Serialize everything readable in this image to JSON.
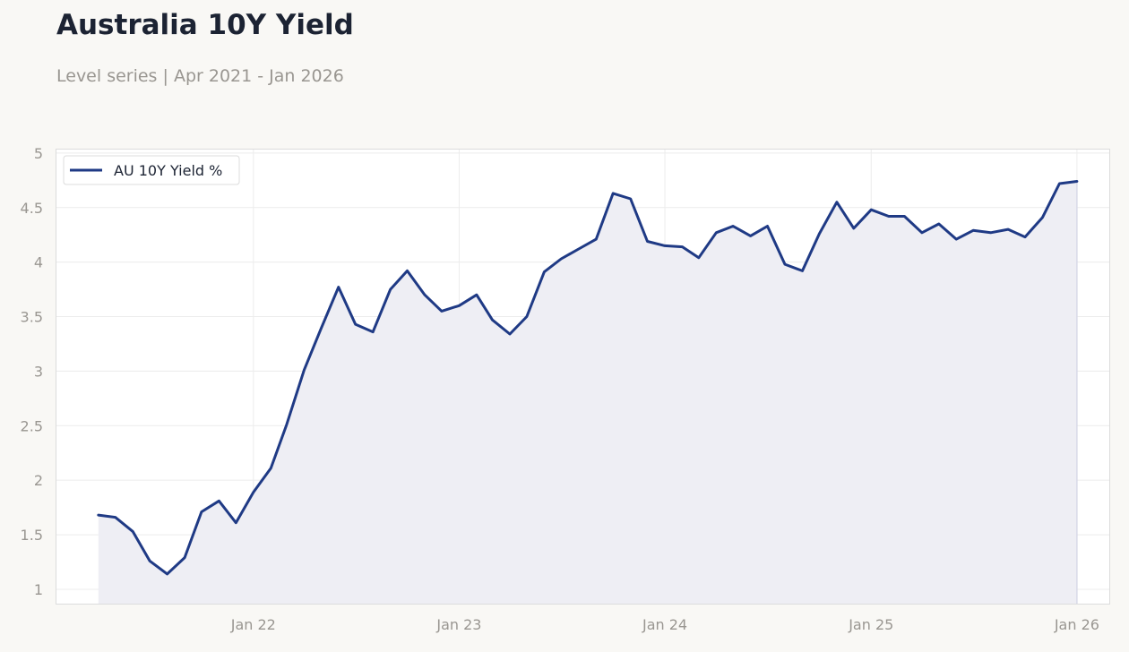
{
  "title": "Australia 10Y Yield",
  "subtitle": "Level series | Apr 2021 - Jan 2026",
  "colors": {
    "line": "#1f3a85",
    "fill": "#eeeef4",
    "grid": "#ececec",
    "frame": "#dcdcdc",
    "background": "#f9f8f5",
    "plot_background": "#ffffff"
  },
  "chart_data": {
    "type": "area",
    "title": "Australia 10Y Yield",
    "subtitle": "Level series | Apr 2021 - Jan 2026",
    "xlabel": "",
    "ylabel": "",
    "xlim": [
      "2021-01-15",
      "2026-03-01"
    ],
    "ylim": [
      0.86,
      5.04
    ],
    "yticks": [
      1,
      1.5,
      2,
      2.5,
      3,
      3.5,
      4,
      4.5,
      5
    ],
    "ytick_labels": [
      "1",
      "1.5",
      "2",
      "2.5",
      "3",
      "3.5",
      "4",
      "4.5",
      "5"
    ],
    "xticks": [
      "2022-01-01",
      "2023-01-01",
      "2024-01-01",
      "2025-01-01",
      "2026-01-01"
    ],
    "xtick_labels": [
      "Jan 22",
      "Jan 23",
      "Jan 24",
      "Jan 25",
      "Jan 26"
    ],
    "grid": true,
    "legend": "top-left",
    "series": [
      {
        "name": "AU 10Y Yield %",
        "x": [
          "2021-04-01",
          "2021-05-01",
          "2021-06-01",
          "2021-07-01",
          "2021-08-01",
          "2021-09-01",
          "2021-10-01",
          "2021-11-01",
          "2021-12-01",
          "2022-01-01",
          "2022-02-01",
          "2022-03-01",
          "2022-04-01",
          "2022-05-01",
          "2022-06-01",
          "2022-07-01",
          "2022-08-01",
          "2022-09-01",
          "2022-10-01",
          "2022-11-01",
          "2022-12-01",
          "2023-01-01",
          "2023-02-01",
          "2023-03-01",
          "2023-04-01",
          "2023-05-01",
          "2023-06-01",
          "2023-07-01",
          "2023-08-01",
          "2023-09-01",
          "2023-10-01",
          "2023-11-01",
          "2023-12-01",
          "2024-01-01",
          "2024-02-01",
          "2024-03-01",
          "2024-04-01",
          "2024-05-01",
          "2024-06-01",
          "2024-07-01",
          "2024-08-01",
          "2024-09-01",
          "2024-10-01",
          "2024-11-01",
          "2024-12-01",
          "2025-01-01",
          "2025-02-01",
          "2025-03-01",
          "2025-04-01",
          "2025-05-01",
          "2025-06-01",
          "2025-07-01",
          "2025-08-01",
          "2025-09-01",
          "2025-10-01",
          "2025-11-01",
          "2025-12-01",
          "2026-01-01"
        ],
        "values": [
          1.68,
          1.66,
          1.53,
          1.26,
          1.14,
          1.29,
          1.71,
          1.81,
          1.61,
          1.89,
          2.11,
          2.51,
          3.01,
          3.39,
          3.77,
          3.43,
          3.36,
          3.75,
          3.92,
          3.7,
          3.55,
          3.6,
          3.7,
          3.47,
          3.34,
          3.5,
          3.91,
          4.03,
          4.12,
          4.21,
          4.63,
          4.58,
          4.19,
          4.15,
          4.14,
          4.04,
          4.27,
          4.33,
          4.24,
          4.33,
          3.98,
          3.92,
          4.26,
          4.55,
          4.31,
          4.48,
          4.42,
          4.42,
          4.27,
          4.35,
          4.21,
          4.29,
          4.27,
          4.3,
          4.23,
          4.41,
          4.72,
          4.74
        ]
      }
    ]
  }
}
